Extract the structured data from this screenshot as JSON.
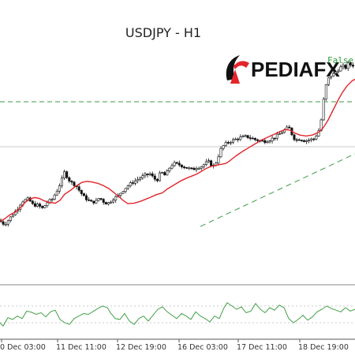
{
  "chart_data": {
    "type": "line",
    "title": "USDJPY - H1",
    "subtype": "candlestick with moving averages and oscillator",
    "brand": "PEDIAFX",
    "annotation": "False B",
    "x_tick_labels": [
      "0 Dec 03:00",
      "11 Dec 11:00",
      "12 Dec 19:00",
      "16 Dec 03:00",
      "17 Dec 11:00",
      "18 Dec 19:00"
    ],
    "grid": false,
    "colors": {
      "moving_average": "#e2242b",
      "support_trendline": "#3a9a45",
      "resistance_line": "#3a9a45",
      "grey_reference_line": "#c8c8c8",
      "oscillator": "#43a047",
      "candle_up": "#ffffff",
      "candle_down": "#111111",
      "brand_red": "#e2242b"
    },
    "price_path": [
      {
        "t": 0,
        "v": 148
      },
      {
        "t": 2,
        "v": 142
      },
      {
        "t": 6,
        "v": 140
      },
      {
        "t": 10,
        "v": 147
      },
      {
        "t": 16,
        "v": 160
      },
      {
        "t": 22,
        "v": 172
      },
      {
        "t": 28,
        "v": 188
      },
      {
        "t": 36,
        "v": 193
      },
      {
        "t": 42,
        "v": 180
      },
      {
        "t": 48,
        "v": 180
      },
      {
        "t": 54,
        "v": 173
      },
      {
        "t": 60,
        "v": 186
      },
      {
        "t": 66,
        "v": 192
      },
      {
        "t": 72,
        "v": 210
      },
      {
        "t": 78,
        "v": 232
      },
      {
        "t": 82,
        "v": 251
      },
      {
        "t": 86,
        "v": 236
      },
      {
        "t": 90,
        "v": 228
      },
      {
        "t": 96,
        "v": 222
      },
      {
        "t": 100,
        "v": 212
      },
      {
        "t": 106,
        "v": 198
      },
      {
        "t": 112,
        "v": 190
      },
      {
        "t": 116,
        "v": 186
      },
      {
        "t": 122,
        "v": 188
      },
      {
        "t": 126,
        "v": 196
      },
      {
        "t": 132,
        "v": 186
      },
      {
        "t": 136,
        "v": 183
      },
      {
        "t": 140,
        "v": 188
      },
      {
        "t": 144,
        "v": 194
      },
      {
        "t": 150,
        "v": 200
      },
      {
        "t": 154,
        "v": 208
      },
      {
        "t": 160,
        "v": 218
      },
      {
        "t": 166,
        "v": 226
      },
      {
        "t": 172,
        "v": 232
      },
      {
        "t": 178,
        "v": 238
      },
      {
        "t": 184,
        "v": 243
      },
      {
        "t": 190,
        "v": 246
      },
      {
        "t": 196,
        "v": 235
      },
      {
        "t": 200,
        "v": 234
      },
      {
        "t": 204,
        "v": 252
      },
      {
        "t": 208,
        "v": 242
      },
      {
        "t": 212,
        "v": 250
      },
      {
        "t": 216,
        "v": 262
      },
      {
        "t": 220,
        "v": 268
      },
      {
        "t": 226,
        "v": 266
      },
      {
        "t": 232,
        "v": 262
      },
      {
        "t": 238,
        "v": 258
      },
      {
        "t": 244,
        "v": 255
      },
      {
        "t": 250,
        "v": 260
      },
      {
        "t": 256,
        "v": 262
      },
      {
        "t": 260,
        "v": 268
      },
      {
        "t": 264,
        "v": 272
      },
      {
        "t": 268,
        "v": 265
      },
      {
        "t": 272,
        "v": 262
      },
      {
        "t": 276,
        "v": 280
      },
      {
        "t": 280,
        "v": 298
      },
      {
        "t": 284,
        "v": 307
      },
      {
        "t": 288,
        "v": 312
      },
      {
        "t": 294,
        "v": 316
      },
      {
        "t": 300,
        "v": 320
      },
      {
        "t": 306,
        "v": 323
      },
      {
        "t": 312,
        "v": 325
      },
      {
        "t": 318,
        "v": 322
      },
      {
        "t": 324,
        "v": 318
      },
      {
        "t": 330,
        "v": 316
      },
      {
        "t": 336,
        "v": 315
      },
      {
        "t": 342,
        "v": 318
      },
      {
        "t": 348,
        "v": 323
      },
      {
        "t": 354,
        "v": 330
      },
      {
        "t": 360,
        "v": 338
      },
      {
        "t": 366,
        "v": 345
      },
      {
        "t": 372,
        "v": 322
      },
      {
        "t": 376,
        "v": 318
      },
      {
        "t": 380,
        "v": 320
      },
      {
        "t": 386,
        "v": 316
      },
      {
        "t": 392,
        "v": 318
      },
      {
        "t": 398,
        "v": 320
      },
      {
        "t": 402,
        "v": 330
      },
      {
        "t": 406,
        "v": 345
      },
      {
        "t": 410,
        "v": 400
      },
      {
        "t": 414,
        "v": 440
      },
      {
        "t": 418,
        "v": 452
      },
      {
        "t": 422,
        "v": 456
      },
      {
        "t": 426,
        "v": 462
      },
      {
        "t": 430,
        "v": 468
      },
      {
        "t": 434,
        "v": 474
      },
      {
        "t": 438,
        "v": 470
      },
      {
        "t": 442,
        "v": 480
      },
      {
        "t": 446,
        "v": 474
      },
      {
        "t": 450,
        "v": 478
      }
    ],
    "ma_path": [
      {
        "t": 0,
        "v": 146
      },
      {
        "t": 6,
        "v": 151
      },
      {
        "t": 12,
        "v": 159
      },
      {
        "t": 20,
        "v": 166
      },
      {
        "t": 26,
        "v": 175
      },
      {
        "t": 32,
        "v": 186
      },
      {
        "t": 38,
        "v": 193
      },
      {
        "t": 44,
        "v": 196
      },
      {
        "t": 50,
        "v": 194
      },
      {
        "t": 56,
        "v": 189
      },
      {
        "t": 62,
        "v": 186
      },
      {
        "t": 70,
        "v": 184
      },
      {
        "t": 76,
        "v": 190
      },
      {
        "t": 82,
        "v": 203
      },
      {
        "t": 90,
        "v": 212
      },
      {
        "t": 96,
        "v": 220
      },
      {
        "t": 104,
        "v": 228
      },
      {
        "t": 110,
        "v": 230
      },
      {
        "t": 116,
        "v": 229
      },
      {
        "t": 124,
        "v": 226
      },
      {
        "t": 130,
        "v": 222
      },
      {
        "t": 138,
        "v": 215
      },
      {
        "t": 144,
        "v": 207
      },
      {
        "t": 150,
        "v": 199
      },
      {
        "t": 156,
        "v": 190
      },
      {
        "t": 162,
        "v": 183
      },
      {
        "t": 170,
        "v": 184
      },
      {
        "t": 178,
        "v": 188
      },
      {
        "t": 184,
        "v": 192
      },
      {
        "t": 190,
        "v": 196
      },
      {
        "t": 198,
        "v": 202
      },
      {
        "t": 206,
        "v": 206
      },
      {
        "t": 212,
        "v": 214
      },
      {
        "t": 218,
        "v": 220
      },
      {
        "t": 224,
        "v": 226
      },
      {
        "t": 230,
        "v": 232
      },
      {
        "t": 238,
        "v": 238
      },
      {
        "t": 244,
        "v": 242
      },
      {
        "t": 250,
        "v": 246
      },
      {
        "t": 256,
        "v": 252
      },
      {
        "t": 262,
        "v": 258
      },
      {
        "t": 268,
        "v": 262
      },
      {
        "t": 274,
        "v": 264
      },
      {
        "t": 280,
        "v": 266
      },
      {
        "t": 286,
        "v": 268
      },
      {
        "t": 290,
        "v": 272
      },
      {
        "t": 296,
        "v": 280
      },
      {
        "t": 300,
        "v": 285
      },
      {
        "t": 308,
        "v": 294
      },
      {
        "t": 316,
        "v": 302
      },
      {
        "t": 324,
        "v": 310
      },
      {
        "t": 332,
        "v": 318
      },
      {
        "t": 340,
        "v": 324
      },
      {
        "t": 348,
        "v": 330
      },
      {
        "t": 356,
        "v": 336
      },
      {
        "t": 362,
        "v": 340
      },
      {
        "t": 368,
        "v": 338
      },
      {
        "t": 374,
        "v": 332
      },
      {
        "t": 380,
        "v": 328
      },
      {
        "t": 388,
        "v": 326
      },
      {
        "t": 396,
        "v": 328
      },
      {
        "t": 404,
        "v": 334
      },
      {
        "t": 410,
        "v": 344
      },
      {
        "t": 416,
        "v": 360
      },
      {
        "t": 422,
        "v": 380
      },
      {
        "t": 428,
        "v": 400
      },
      {
        "t": 434,
        "v": 418
      },
      {
        "t": 440,
        "v": 432
      },
      {
        "t": 446,
        "v": 442
      },
      {
        "t": 450,
        "v": 446
      }
    ],
    "oscillator_path": [
      {
        "t": 0,
        "v": 30
      },
      {
        "t": 4,
        "v": 22
      },
      {
        "t": 10,
        "v": 42
      },
      {
        "t": 16,
        "v": 38
      },
      {
        "t": 22,
        "v": 46
      },
      {
        "t": 28,
        "v": 40
      },
      {
        "t": 34,
        "v": 58
      },
      {
        "t": 40,
        "v": 55
      },
      {
        "t": 46,
        "v": 50
      },
      {
        "t": 52,
        "v": 54
      },
      {
        "t": 58,
        "v": 44
      },
      {
        "t": 64,
        "v": 56
      },
      {
        "t": 70,
        "v": 60
      },
      {
        "t": 76,
        "v": 38
      },
      {
        "t": 82,
        "v": 30
      },
      {
        "t": 88,
        "v": 26
      },
      {
        "t": 94,
        "v": 40
      },
      {
        "t": 100,
        "v": 46
      },
      {
        "t": 106,
        "v": 52
      },
      {
        "t": 112,
        "v": 50
      },
      {
        "t": 118,
        "v": 57
      },
      {
        "t": 124,
        "v": 64
      },
      {
        "t": 130,
        "v": 70
      },
      {
        "t": 136,
        "v": 66
      },
      {
        "t": 140,
        "v": 54
      },
      {
        "t": 146,
        "v": 40
      },
      {
        "t": 152,
        "v": 38
      },
      {
        "t": 158,
        "v": 52
      },
      {
        "t": 164,
        "v": 34
      },
      {
        "t": 170,
        "v": 26
      },
      {
        "t": 176,
        "v": 40
      },
      {
        "t": 182,
        "v": 46
      },
      {
        "t": 188,
        "v": 34
      },
      {
        "t": 194,
        "v": 48
      },
      {
        "t": 200,
        "v": 62
      },
      {
        "t": 206,
        "v": 68
      },
      {
        "t": 212,
        "v": 56
      },
      {
        "t": 218,
        "v": 48
      },
      {
        "t": 224,
        "v": 40
      },
      {
        "t": 230,
        "v": 52
      },
      {
        "t": 236,
        "v": 46
      },
      {
        "t": 242,
        "v": 38
      },
      {
        "t": 248,
        "v": 56
      },
      {
        "t": 254,
        "v": 46
      },
      {
        "t": 260,
        "v": 40
      },
      {
        "t": 266,
        "v": 32
      },
      {
        "t": 272,
        "v": 46
      },
      {
        "t": 278,
        "v": 40
      },
      {
        "t": 284,
        "v": 66
      },
      {
        "t": 288,
        "v": 78
      },
      {
        "t": 294,
        "v": 70
      },
      {
        "t": 300,
        "v": 62
      },
      {
        "t": 306,
        "v": 68
      },
      {
        "t": 312,
        "v": 54
      },
      {
        "t": 318,
        "v": 58
      },
      {
        "t": 324,
        "v": 76
      },
      {
        "t": 330,
        "v": 62
      },
      {
        "t": 336,
        "v": 54
      },
      {
        "t": 342,
        "v": 66
      },
      {
        "t": 348,
        "v": 60
      },
      {
        "t": 354,
        "v": 72
      },
      {
        "t": 360,
        "v": 66
      },
      {
        "t": 366,
        "v": 40
      },
      {
        "t": 372,
        "v": 30
      },
      {
        "t": 378,
        "v": 38
      },
      {
        "t": 384,
        "v": 48
      },
      {
        "t": 390,
        "v": 36
      },
      {
        "t": 396,
        "v": 44
      },
      {
        "t": 402,
        "v": 56
      },
      {
        "t": 408,
        "v": 62
      },
      {
        "t": 414,
        "v": 70
      },
      {
        "t": 420,
        "v": 64
      },
      {
        "t": 426,
        "v": 60
      },
      {
        "t": 432,
        "v": 56
      },
      {
        "t": 438,
        "v": 66
      },
      {
        "t": 444,
        "v": 58
      },
      {
        "t": 450,
        "v": 62
      }
    ]
  }
}
